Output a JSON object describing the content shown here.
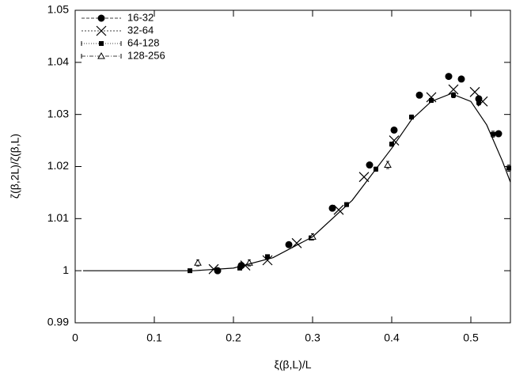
{
  "chart_data": {
    "type": "scatter",
    "x_label": "ξ(β,L)/L",
    "y_label": "ζ(β,2L)/ζ(β,L)",
    "xlim": [
      0,
      0.55
    ],
    "ylim": [
      0.99,
      1.05
    ],
    "xticks": [
      0,
      0.1,
      0.2,
      0.3,
      0.4,
      0.5
    ],
    "yticks": [
      0.99,
      1,
      1.01,
      1.02,
      1.03,
      1.04,
      1.05
    ],
    "legend": "upper left",
    "series": [
      {
        "name": "16-32",
        "color": "#000000",
        "marker": "circle",
        "dash": "4,2",
        "x": [
          0.18,
          0.21,
          0.27,
          0.325,
          0.372,
          0.403,
          0.435,
          0.472,
          0.488,
          0.51,
          0.535
        ],
        "values": [
          1.0,
          1.001,
          1.005,
          1.012,
          1.0203,
          1.027,
          1.0337,
          1.0373,
          1.0368,
          1.033,
          1.0263
        ]
      },
      {
        "name": "32-64",
        "color": "#000000",
        "marker": "x",
        "dash": "2,2",
        "x": [
          0.175,
          0.215,
          0.243,
          0.28,
          0.333,
          0.365,
          0.403,
          0.45,
          0.478,
          0.505,
          0.515
        ],
        "values": [
          1.0003,
          1.001,
          1.002,
          1.0053,
          1.0117,
          1.018,
          1.025,
          1.0333,
          1.0348,
          1.0343,
          1.0325
        ]
      },
      {
        "name": "64-128",
        "color": "#000000",
        "marker": "square",
        "dash": "1,2",
        "x": [
          0.145,
          0.208,
          0.243,
          0.298,
          0.343,
          0.38,
          0.4,
          0.425,
          0.45,
          0.478,
          0.51,
          0.528,
          0.548
        ],
        "values": [
          1.0,
          1.0005,
          1.0027,
          1.0063,
          1.0127,
          1.0195,
          1.0243,
          1.0295,
          1.0327,
          1.0337,
          1.0323,
          1.0262,
          1.0197
        ],
        "errors": [
          0.0003,
          0.0003,
          0.0003,
          0.0004,
          0.0004,
          0.0004,
          0.0004,
          0.0004,
          0.0004,
          0.0005,
          0.0005,
          0.0006,
          0.0006
        ]
      },
      {
        "name": "128-256",
        "color": "#000000",
        "marker": "triangle",
        "dash": "5,2,1,2",
        "x": [
          0.155,
          0.22,
          0.3,
          0.395
        ],
        "values": [
          1.0015,
          1.0015,
          1.0065,
          1.0203
        ],
        "errors": [
          0.0006,
          0.0006,
          0.0006,
          0.0007
        ]
      },
      {
        "style": "line",
        "color": "#000000",
        "x": [
          0.01,
          0.15,
          0.2,
          0.25,
          0.3,
          0.35,
          0.4,
          0.425,
          0.45,
          0.475,
          0.5,
          0.52,
          0.54,
          0.55
        ],
        "values": [
          1.0,
          1.0,
          1.0005,
          1.0025,
          1.0065,
          1.0135,
          1.0235,
          1.029,
          1.0325,
          1.034,
          1.0325,
          1.028,
          1.021,
          1.017
        ]
      }
    ]
  }
}
